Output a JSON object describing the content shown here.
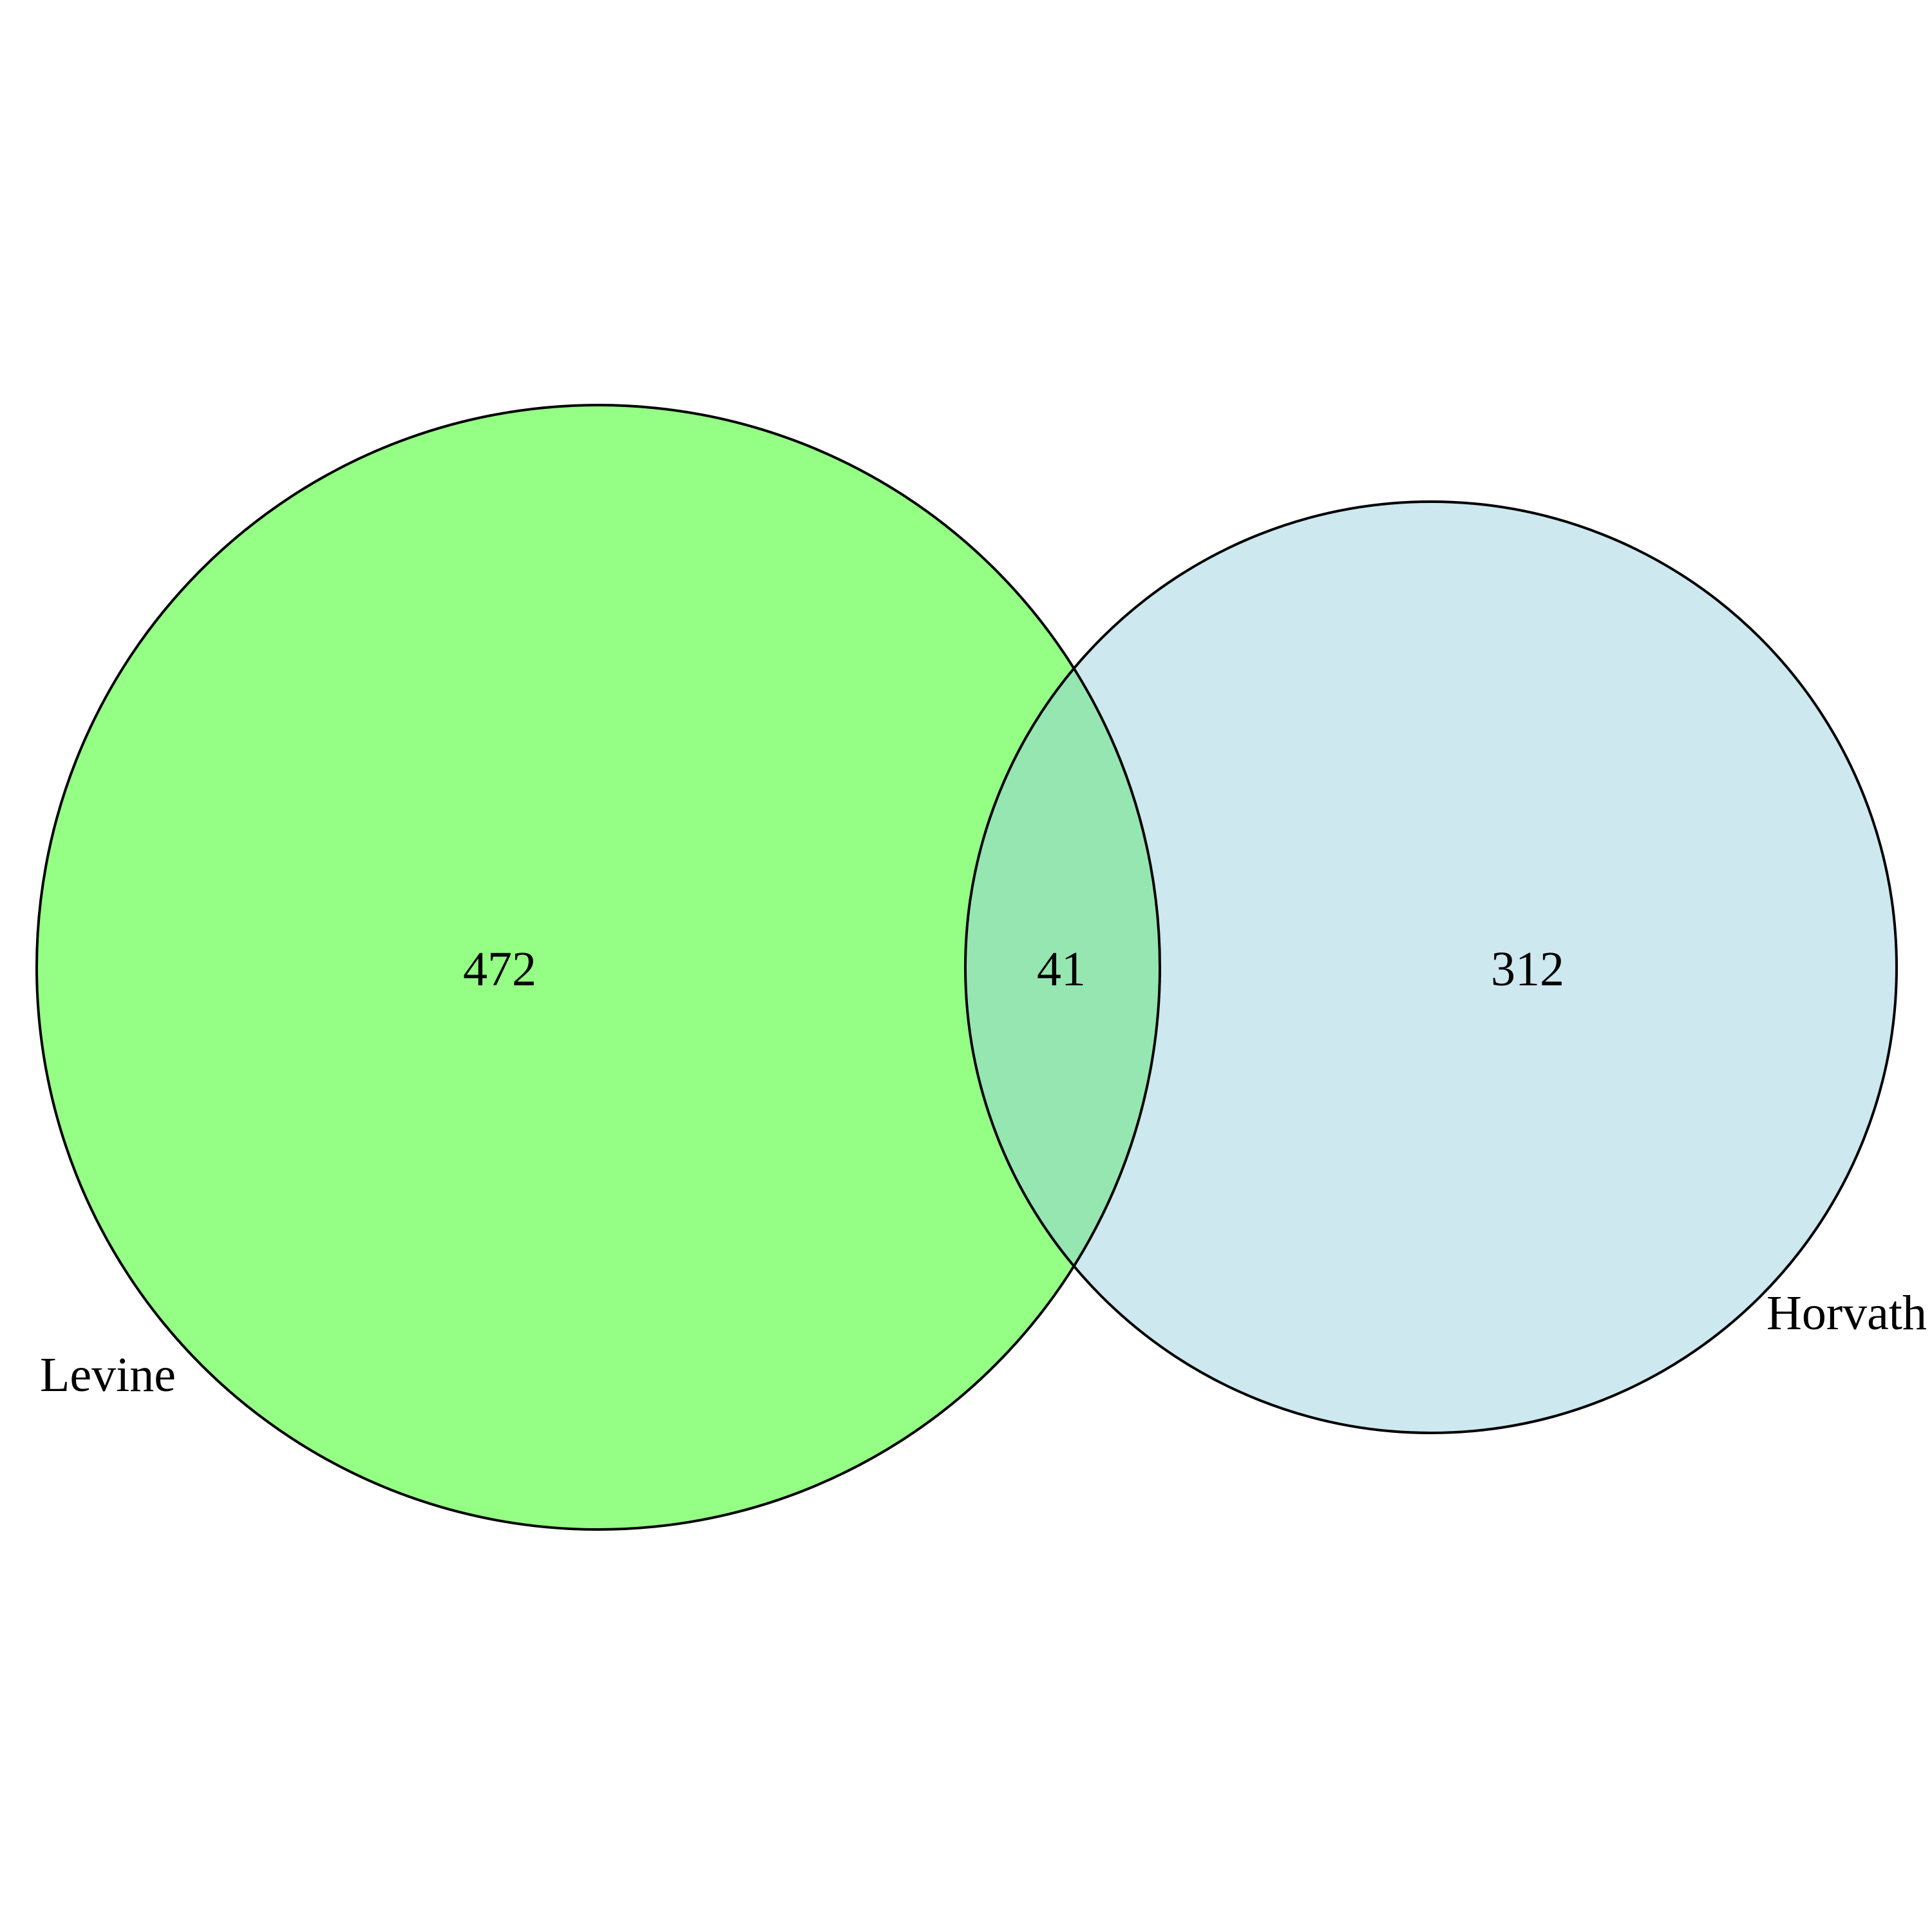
{
  "sets": [
    {
      "label": "Levine",
      "count": "472",
      "fill": "#94FF84"
    },
    {
      "label": "Horvath",
      "count": "312",
      "fill": "#CDE8EF"
    }
  ],
  "intersection": {
    "count": "41",
    "fill": "#96E6B2"
  },
  "outline_color": "#000000"
}
